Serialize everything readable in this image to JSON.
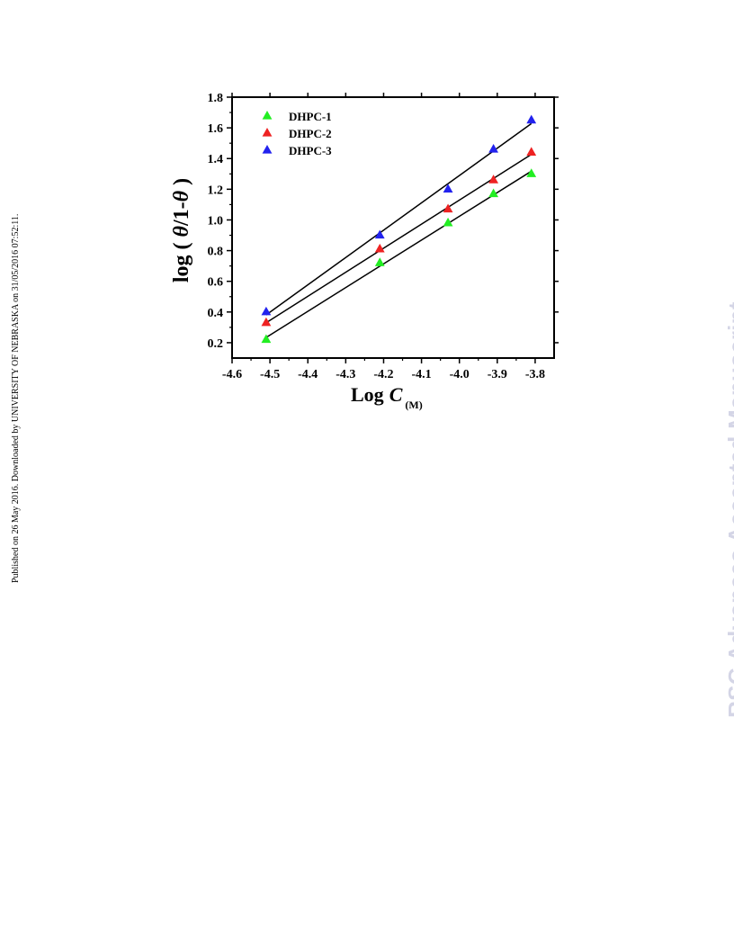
{
  "side_note": "Published on 26 May 2016. Downloaded by UNIVERSITY OF NEBRASKA on 31/05/2016 07:52:11.",
  "watermark": "RSC Advances Accepted Manuscript",
  "chart_data": {
    "type": "scatter",
    "title": "",
    "xlabel": {
      "main": "Log",
      "var": "C",
      "sub": "(M)"
    },
    "ylabel": {
      "prefix": "log ( ",
      "theta1": "θ",
      "middle": "/1-",
      "theta2": "θ",
      "suffix": " )"
    },
    "xlim": [
      -4.6,
      -3.75
    ],
    "ylim": [
      0.1,
      1.8
    ],
    "xticks": [
      -4.6,
      -4.5,
      -4.4,
      -4.3,
      -4.2,
      -4.1,
      -4.0,
      -3.9,
      -3.8
    ],
    "xtick_labels": [
      "-4.6",
      "-4.5",
      "-4.4",
      "-4.3",
      "-4.2",
      "-4.1",
      "-4.0",
      "-3.9",
      "-3.8"
    ],
    "yticks": [
      0.2,
      0.4,
      0.6,
      0.8,
      1.0,
      1.2,
      1.4,
      1.6,
      1.8
    ],
    "ytick_labels": [
      "0.2",
      "0.4",
      "0.6",
      "0.8",
      "1.0",
      "1.2",
      "1.4",
      "1.6",
      "1.8"
    ],
    "legend_position": "top-left",
    "marker": "triangle",
    "fit_lines": true,
    "series": [
      {
        "name": "DHPC-1",
        "color": "#22ee22",
        "x": [
          -4.51,
          -4.21,
          -4.03,
          -3.91,
          -3.81
        ],
        "y": [
          0.22,
          0.72,
          0.98,
          1.17,
          1.3
        ]
      },
      {
        "name": "DHPC-2",
        "color": "#ee2222",
        "x": [
          -4.51,
          -4.21,
          -4.03,
          -3.91,
          -3.81
        ],
        "y": [
          0.33,
          0.81,
          1.07,
          1.26,
          1.44
        ]
      },
      {
        "name": "DHPC-3",
        "color": "#2222ee",
        "x": [
          -4.51,
          -4.21,
          -4.03,
          -3.91,
          -3.81
        ],
        "y": [
          0.4,
          0.9,
          1.2,
          1.46,
          1.65
        ]
      }
    ]
  }
}
